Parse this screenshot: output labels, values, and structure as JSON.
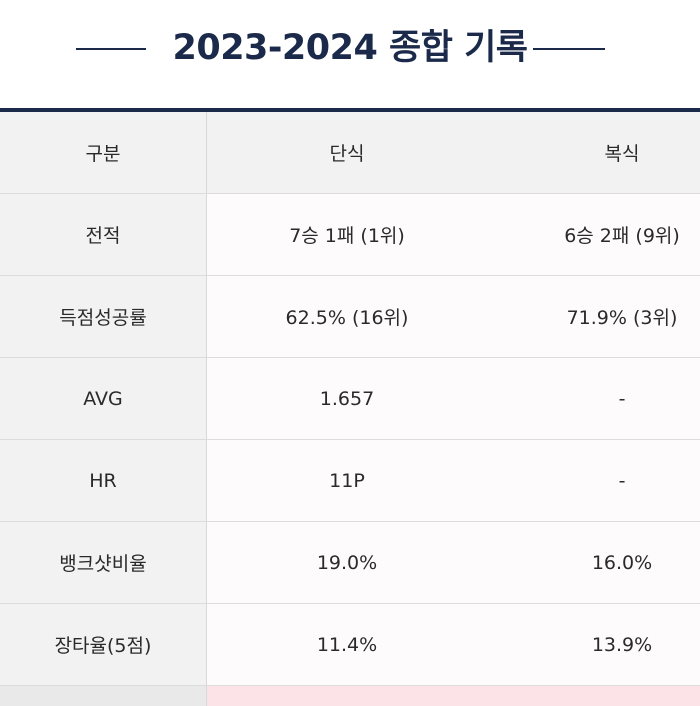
{
  "title": "2023-2024 종합 기록",
  "columns": [
    "구분",
    "단식",
    "복식"
  ],
  "rows": [
    [
      "전적",
      "7승 1패 (1위)",
      "6승 2패 (9위)"
    ],
    [
      "득점성공률",
      "62.5% (16위)",
      "71.9% (3위)"
    ],
    [
      "AVG",
      "1.657",
      "-"
    ],
    [
      "HR",
      "11P",
      "-"
    ],
    [
      "뱅크샷비율",
      "19.0%",
      "16.0%"
    ],
    [
      "장타율(5점)",
      "11.4%",
      "13.9%"
    ]
  ],
  "colors": {
    "navy": "#1b2a4a",
    "header_bg": "#f2f2f2",
    "next_row_tint": "#fbe3e8"
  }
}
